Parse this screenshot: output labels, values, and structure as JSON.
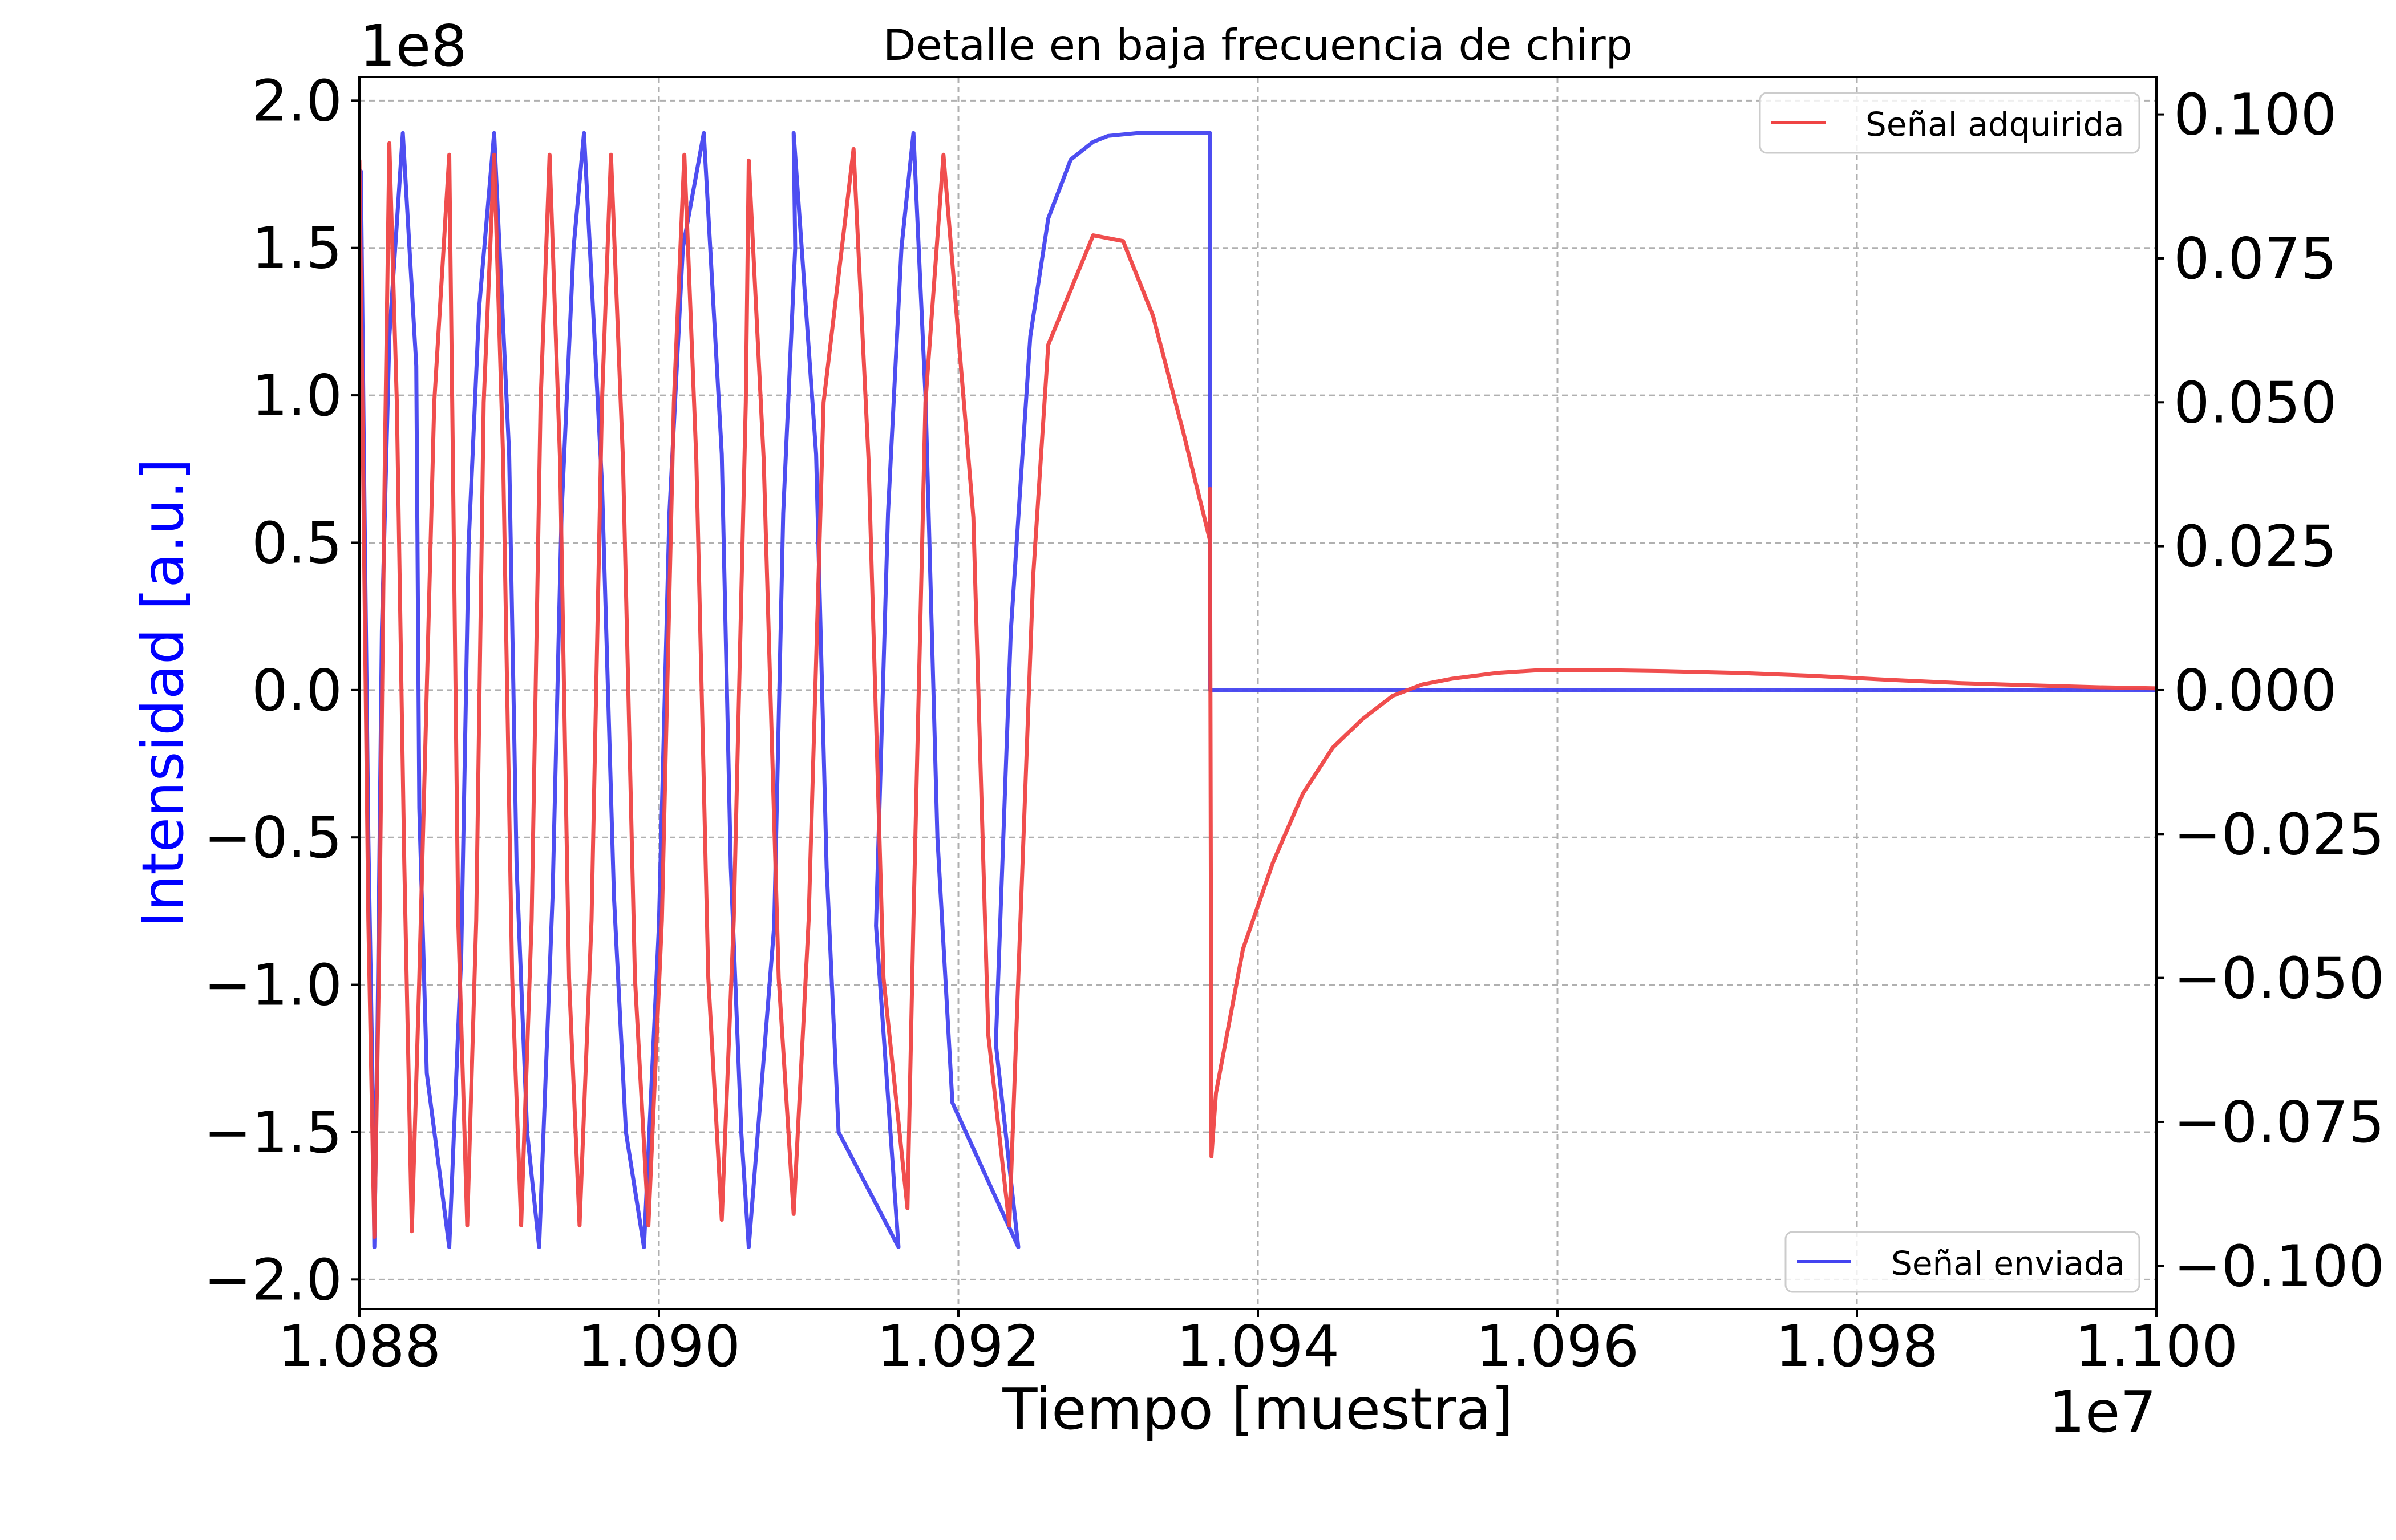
{
  "chart_data": {
    "type": "line",
    "title": "Detalle en baja frecuencia de chirp",
    "xlabel": "Tiempo [muestra]",
    "ylabel": "Intensidad [a.u.]",
    "ylabel_color": "#0000ff",
    "y2label": "",
    "y2label_color": "#d62728",
    "x_offset_text": "1e7",
    "y_offset_text": "1e8",
    "xlim": [
      1.088,
      1.1
    ],
    "ylim": [
      -2.1,
      2.08
    ],
    "y2lim": [
      -0.1075,
      0.1065
    ],
    "x_ticks": [
      1.088,
      1.09,
      1.092,
      1.094,
      1.096,
      1.098,
      1.1
    ],
    "x_tick_labels": [
      "1.088",
      "1.090",
      "1.092",
      "1.094",
      "1.096",
      "1.098",
      "1.100"
    ],
    "y_ticks": [
      2.0,
      1.5,
      1.0,
      0.5,
      0.0,
      -0.5,
      -1.0,
      -1.5,
      -2.0
    ],
    "y_tick_labels": [
      "2.0",
      "1.5",
      "1.0",
      "0.5",
      "0.0",
      "−0.5",
      "−1.0",
      "−1.5",
      "−2.0"
    ],
    "y2_ticks": [
      0.1,
      0.075,
      0.05,
      0.025,
      0.0,
      -0.025,
      -0.05,
      -0.075,
      -0.1
    ],
    "y2_tick_labels": [
      "0.100",
      "0.075",
      "0.050",
      "0.025",
      "0.000",
      "−0.025",
      "−0.050",
      "−0.075",
      "−0.100"
    ],
    "grid": true,
    "series": [
      {
        "name": "Señal enviada",
        "axis": "left",
        "color": "#4444f0",
        "legend_placement": "bottom-right",
        "points": [
          [
            1.08801,
            1.76
          ],
          [
            1.08803,
            0.8
          ],
          [
            1.08806,
            -0.5
          ],
          [
            1.08809,
            -1.4
          ],
          [
            1.0881,
            -1.89
          ],
          [
            1.08812,
            -1.2
          ],
          [
            1.08815,
            0.2
          ],
          [
            1.0882,
            1.2
          ],
          [
            1.08829,
            1.89
          ],
          [
            1.08838,
            1.1
          ],
          [
            1.0884,
            -0.4
          ],
          [
            1.08845,
            -1.3
          ],
          [
            1.0886,
            -1.89
          ],
          [
            1.08868,
            -0.9
          ],
          [
            1.08873,
            0.5
          ],
          [
            1.0888,
            1.3
          ],
          [
            1.0889,
            1.89
          ],
          [
            1.089,
            0.8
          ],
          [
            1.08905,
            -0.6
          ],
          [
            1.08912,
            -1.5
          ],
          [
            1.0892,
            -1.89
          ],
          [
            1.08929,
            -0.7
          ],
          [
            1.08935,
            0.6
          ],
          [
            1.08943,
            1.5
          ],
          [
            1.0895,
            1.89
          ],
          [
            1.08962,
            0.7
          ],
          [
            1.0897,
            -0.7
          ],
          [
            1.08978,
            -1.5
          ],
          [
            1.0899,
            -1.89
          ],
          [
            1.09,
            -0.8
          ],
          [
            1.09007,
            0.6
          ],
          [
            1.09016,
            1.5
          ],
          [
            1.0903,
            1.89
          ],
          [
            1.09042,
            0.8
          ],
          [
            1.09048,
            -0.6
          ],
          [
            1.09055,
            -1.5
          ],
          [
            1.0906,
            -1.89
          ],
          [
            1.09077,
            -0.8
          ],
          [
            1.09083,
            0.6
          ],
          [
            1.09091,
            1.5
          ],
          [
            1.0909,
            1.89
          ],
          [
            1.09105,
            0.8
          ],
          [
            1.09112,
            -0.6
          ],
          [
            1.0912,
            -1.5
          ],
          [
            1.0916,
            -1.89
          ],
          [
            1.09145,
            -0.8
          ],
          [
            1.09153,
            0.6
          ],
          [
            1.09162,
            1.5
          ],
          [
            1.0917,
            1.89
          ],
          [
            1.09178,
            1.0
          ],
          [
            1.09186,
            -0.5
          ],
          [
            1.09196,
            -1.4
          ],
          [
            1.0924,
            -1.89
          ],
          [
            1.09225,
            -1.2
          ],
          [
            1.09235,
            0.2
          ],
          [
            1.09248,
            1.2
          ],
          [
            1.0926,
            1.6
          ],
          [
            1.09275,
            1.8
          ],
          [
            1.0929,
            1.86
          ],
          [
            1.093,
            1.88
          ],
          [
            1.0932,
            1.89
          ],
          [
            1.09368,
            1.89
          ],
          [
            1.09368,
            0.0
          ],
          [
            1.0937,
            0.0
          ],
          [
            1.1,
            0.0
          ]
        ]
      },
      {
        "name": "Señal adquirida",
        "axis": "right",
        "color": "#ef4444",
        "legend_placement": "top-right",
        "points": [
          [
            1.088,
            0.092
          ],
          [
            1.08802,
            0.05
          ],
          [
            1.08806,
            -0.04
          ],
          [
            1.0881,
            -0.095
          ],
          [
            1.08813,
            -0.05
          ],
          [
            1.08817,
            0.04
          ],
          [
            1.0882,
            0.095
          ],
          [
            1.08825,
            0.05
          ],
          [
            1.0883,
            -0.03
          ],
          [
            1.08835,
            -0.094
          ],
          [
            1.0884,
            -0.05
          ],
          [
            1.0885,
            0.05
          ],
          [
            1.0886,
            0.093
          ],
          [
            1.08862,
            0.05
          ],
          [
            1.08866,
            -0.04
          ],
          [
            1.08872,
            -0.093
          ],
          [
            1.08878,
            -0.04
          ],
          [
            1.08883,
            0.05
          ],
          [
            1.0889,
            0.093
          ],
          [
            1.08896,
            0.04
          ],
          [
            1.08902,
            -0.05
          ],
          [
            1.08908,
            -0.093
          ],
          [
            1.08915,
            -0.04
          ],
          [
            1.08921,
            0.05
          ],
          [
            1.08927,
            0.093
          ],
          [
            1.08934,
            0.04
          ],
          [
            1.0894,
            -0.05
          ],
          [
            1.08947,
            -0.093
          ],
          [
            1.08955,
            -0.04
          ],
          [
            1.08962,
            0.05
          ],
          [
            1.08968,
            0.093
          ],
          [
            1.08976,
            0.04
          ],
          [
            1.08984,
            -0.05
          ],
          [
            1.08993,
            -0.093
          ],
          [
            1.09002,
            -0.04
          ],
          [
            1.0901,
            0.05
          ],
          [
            1.09017,
            0.093
          ],
          [
            1.09025,
            0.04
          ],
          [
            1.09033,
            -0.05
          ],
          [
            1.09042,
            -0.092
          ],
          [
            1.0905,
            -0.04
          ],
          [
            1.09058,
            0.05
          ],
          [
            1.0906,
            0.092
          ],
          [
            1.0907,
            0.04
          ],
          [
            1.0908,
            -0.05
          ],
          [
            1.0909,
            -0.091
          ],
          [
            1.091,
            -0.04
          ],
          [
            1.0911,
            0.05
          ],
          [
            1.0913,
            0.094
          ],
          [
            1.0914,
            0.04
          ],
          [
            1.0915,
            -0.05
          ],
          [
            1.09166,
            -0.09
          ],
          [
            1.0917,
            -0.04
          ],
          [
            1.09178,
            0.05
          ],
          [
            1.0919,
            0.093
          ],
          [
            1.0921,
            0.03
          ],
          [
            1.0922,
            -0.06
          ],
          [
            1.09234,
            -0.093
          ],
          [
            1.0924,
            -0.05
          ],
          [
            1.0925,
            0.02
          ],
          [
            1.0926,
            0.06
          ],
          [
            1.0929,
            0.079
          ],
          [
            1.0931,
            0.078
          ],
          [
            1.0933,
            0.065
          ],
          [
            1.0935,
            0.045
          ],
          [
            1.09368,
            0.026
          ],
          [
            1.09368,
            0.035
          ],
          [
            1.09369,
            -0.081
          ],
          [
            1.09372,
            -0.07
          ],
          [
            1.0939,
            -0.045
          ],
          [
            1.0941,
            -0.03
          ],
          [
            1.0943,
            -0.018
          ],
          [
            1.0945,
            -0.01
          ],
          [
            1.0947,
            -0.005
          ],
          [
            1.0949,
            -0.001
          ],
          [
            1.0951,
            0.001
          ],
          [
            1.0953,
            0.002
          ],
          [
            1.0956,
            0.003
          ],
          [
            1.0959,
            0.0035
          ],
          [
            1.0962,
            0.0035
          ],
          [
            1.0967,
            0.0033
          ],
          [
            1.0972,
            0.003
          ],
          [
            1.0977,
            0.0025
          ],
          [
            1.0982,
            0.0018
          ],
          [
            1.0987,
            0.0012
          ],
          [
            1.0992,
            0.0008
          ],
          [
            1.0996,
            0.0005
          ],
          [
            1.1,
            0.0003
          ]
        ]
      }
    ]
  }
}
